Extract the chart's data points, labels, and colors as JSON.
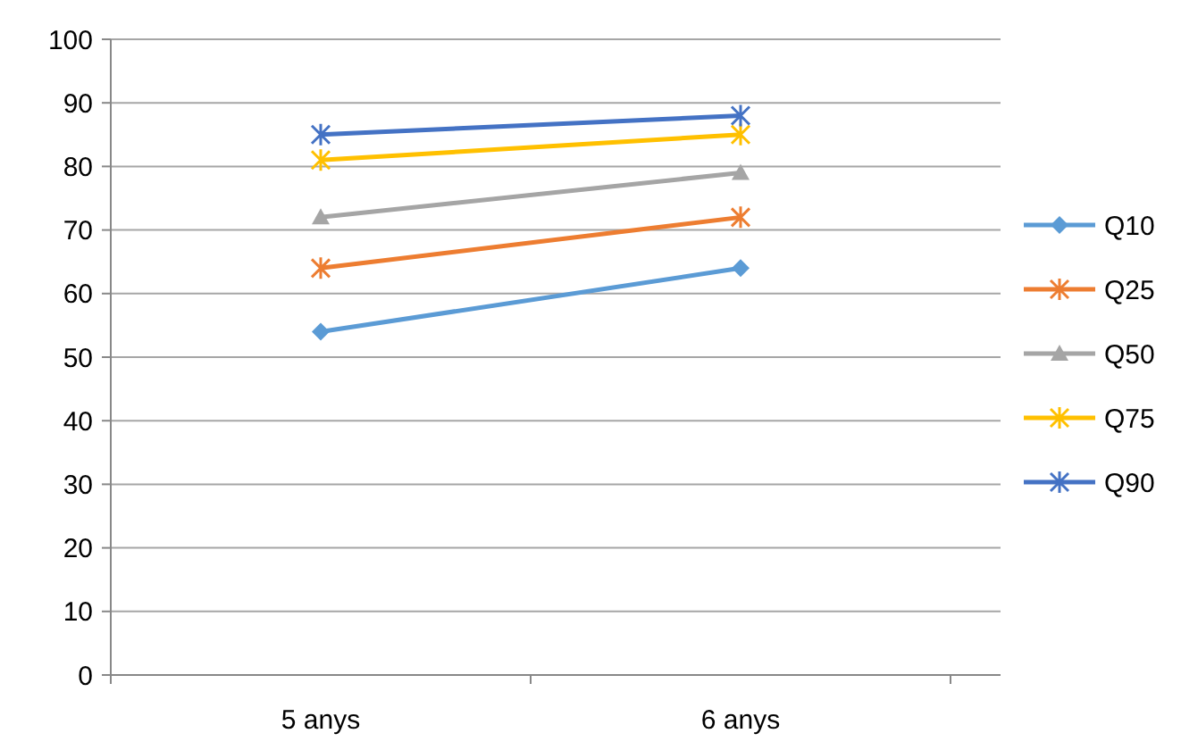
{
  "chart_data": {
    "type": "line",
    "categories": [
      "5 anys",
      "6 anys"
    ],
    "ylim": [
      0,
      100
    ],
    "yticks": [
      0,
      10,
      20,
      30,
      40,
      50,
      60,
      70,
      80,
      90,
      100
    ],
    "grid": "y",
    "legend": "right",
    "series": [
      {
        "name": "Q10",
        "color": "#5b9bd5",
        "values": [
          54,
          64
        ],
        "marker": "diamond"
      },
      {
        "name": "Q25",
        "color": "#ed7d31",
        "values": [
          64,
          72
        ],
        "marker": "cross"
      },
      {
        "name": "Q50",
        "color": "#a5a5a5",
        "values": [
          72,
          79
        ],
        "marker": "triangle"
      },
      {
        "name": "Q75",
        "color": "#ffc000",
        "values": [
          81,
          85
        ],
        "marker": "cross"
      },
      {
        "name": "Q90",
        "color": "#4472c4",
        "values": [
          85,
          88
        ],
        "marker": "cross"
      }
    ]
  }
}
